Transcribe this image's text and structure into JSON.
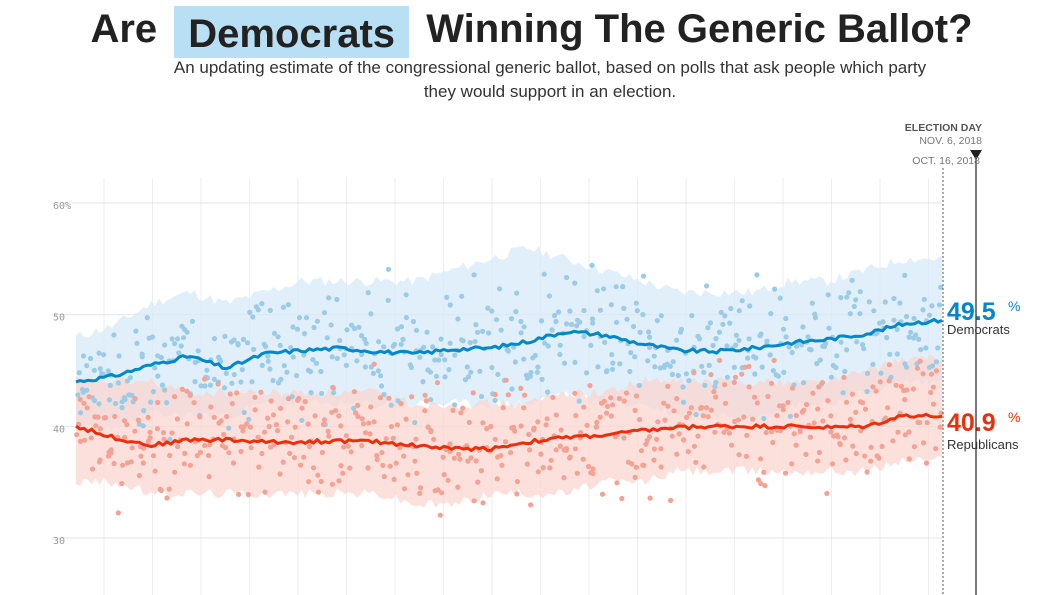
{
  "header": {
    "title_left": "Are",
    "party_selected": "Democrats",
    "title_right": "Winning The Generic Ballot?",
    "subtitle": "An updating estimate of the congressional generic ballot, based on polls that ask people which party they would support in an election."
  },
  "colors": {
    "dem": "#0088c8",
    "dem_band": "#d5eaf8",
    "dem_dot": "#9ccbe6",
    "rep": "#ee2e0a",
    "rep_band": "#fbd6d0",
    "rep_dot": "#f3a293"
  },
  "election_marker": {
    "head": "ELECTION DAY",
    "date": "NOV. 6, 2018",
    "current": "OCT. 16, 2018"
  },
  "chart_data": {
    "type": "line",
    "y_ticks": [
      "60%",
      "50",
      "40",
      "30"
    ],
    "ylim": [
      28,
      64
    ],
    "grid": true,
    "series": [
      {
        "name": "Democrats",
        "final_value": "49.5",
        "unit": "%",
        "trend": [
          44.0,
          44.5,
          45.5,
          46.3,
          45.2,
          46.5,
          46.8,
          47.0,
          46.7,
          46.5,
          46.9,
          47.0,
          47.6,
          48.5,
          48.2,
          47.4,
          46.8,
          46.7,
          47.0,
          47.5,
          47.8,
          48.3,
          49.2,
          49.5
        ],
        "band_high": [
          48,
          49,
          51,
          52,
          51,
          52,
          53,
          53,
          53,
          53,
          54,
          55,
          56,
          55,
          54,
          53,
          52,
          52,
          52,
          53,
          53,
          54,
          55,
          55
        ],
        "band_low": [
          40,
          40,
          41,
          41,
          41,
          42,
          42,
          42,
          42,
          42,
          42,
          42,
          42,
          43,
          42,
          42,
          41,
          41,
          41,
          42,
          42,
          43,
          44,
          44
        ]
      },
      {
        "name": "Republicans",
        "final_value": "40.9",
        "unit": "%",
        "trend": [
          40.0,
          39.0,
          38.3,
          38.8,
          38.8,
          38.6,
          38.6,
          38.7,
          38.6,
          38.3,
          38.0,
          38.0,
          38.6,
          39.0,
          39.2,
          39.6,
          39.9,
          40.0,
          40.0,
          40.0,
          39.9,
          40.0,
          41.0,
          40.9
        ],
        "band_high": [
          44,
          44,
          44,
          43,
          43,
          43,
          43,
          43,
          43,
          42,
          42,
          42,
          42,
          43,
          43,
          44,
          44,
          44,
          44,
          44,
          44,
          45,
          46,
          46
        ],
        "band_low": [
          35,
          35,
          34,
          34,
          34,
          34,
          34,
          34,
          34,
          33,
          33,
          34,
          34,
          34,
          35,
          35,
          36,
          36,
          36,
          36,
          36,
          36,
          37,
          37
        ]
      }
    ]
  }
}
